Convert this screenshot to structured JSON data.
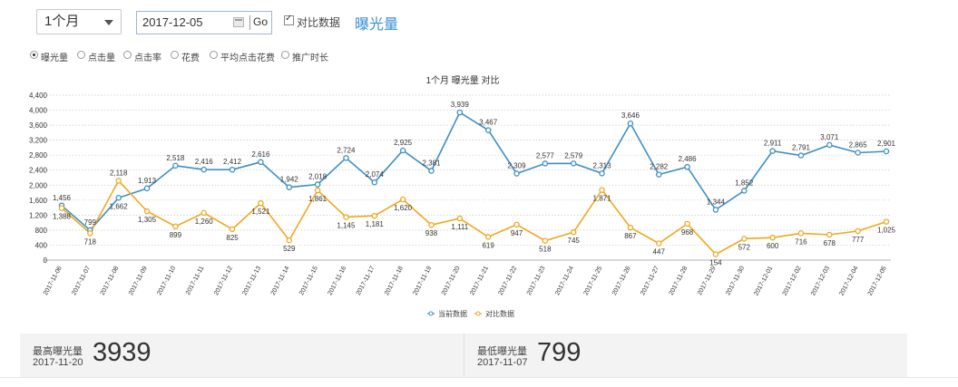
{
  "toolbar": {
    "period_value": "1个月",
    "date_value": "2017-12-05",
    "go_label": "Go",
    "compare_label": "对比数据",
    "metric_title": "曝光量"
  },
  "metrics_radio": [
    {
      "label": "曝光量",
      "selected": true
    },
    {
      "label": "点击量",
      "selected": false
    },
    {
      "label": "点击率",
      "selected": false
    },
    {
      "label": "花费",
      "selected": false
    },
    {
      "label": "平均点击花费",
      "selected": false
    },
    {
      "label": "推广时长",
      "selected": false
    }
  ],
  "colors": {
    "current": "#3d8fc2",
    "compare": "#f0a81e",
    "accent": "#3a8fd1"
  },
  "chart_data": {
    "type": "line",
    "title": "1个月  曝光量  对比",
    "xlabel": "",
    "ylabel": "",
    "ylim": [
      0,
      4400
    ],
    "yticks": [
      0,
      400,
      800,
      1200,
      1600,
      2000,
      2400,
      2800,
      3200,
      3600,
      4000,
      4400
    ],
    "ytick_labels": [
      "0",
      "400",
      "800",
      "1,200",
      "1,600",
      "2,000",
      "2,400",
      "2,800",
      "3,200",
      "3,600",
      "4,000",
      "4,400"
    ],
    "grid": true,
    "legend": "bottom-center",
    "categories": [
      "2017-11-06",
      "2017-11-07",
      "2017-11-08",
      "2017-11-09",
      "2017-11-10",
      "2017-11-11",
      "2017-11-12",
      "2017-11-13",
      "2017-11-14",
      "2017-11-15",
      "2017-11-16",
      "2017-11-17",
      "2017-11-18",
      "2017-11-19",
      "2017-11-20",
      "2017-11-21",
      "2017-11-22",
      "2017-11-23",
      "2017-11-24",
      "2017-11-25",
      "2017-11-26",
      "2017-11-27",
      "2017-11-28",
      "2017-11-29",
      "2017-11-30",
      "2017-12-01",
      "2017-12-02",
      "2017-12-03",
      "2017-12-04",
      "2017-12-05"
    ],
    "series": [
      {
        "name": "当前数据",
        "values": [
          1456,
          799,
          1662,
          1913,
          2518,
          2416,
          2412,
          2616,
          1942,
          2018,
          2724,
          2074,
          2925,
          2381,
          3939,
          3467,
          2309,
          2577,
          2579,
          2313,
          3646,
          2282,
          2486,
          1344,
          1852,
          2911,
          2791,
          3071,
          2865,
          2901
        ]
      },
      {
        "name": "对比数据",
        "values": [
          1388,
          718,
          2118,
          1305,
          899,
          1260,
          825,
          1521,
          529,
          1861,
          1145,
          1181,
          1620,
          938,
          1111,
          619,
          947,
          518,
          745,
          1871,
          867,
          447,
          968,
          154,
          572,
          600,
          716,
          678,
          777,
          1025
        ]
      }
    ]
  },
  "stats": {
    "max": {
      "label": "最高曝光量",
      "date": "2017-11-20",
      "value": "3939"
    },
    "min": {
      "label": "最低曝光量",
      "date": "2017-11-07",
      "value": "799"
    }
  }
}
